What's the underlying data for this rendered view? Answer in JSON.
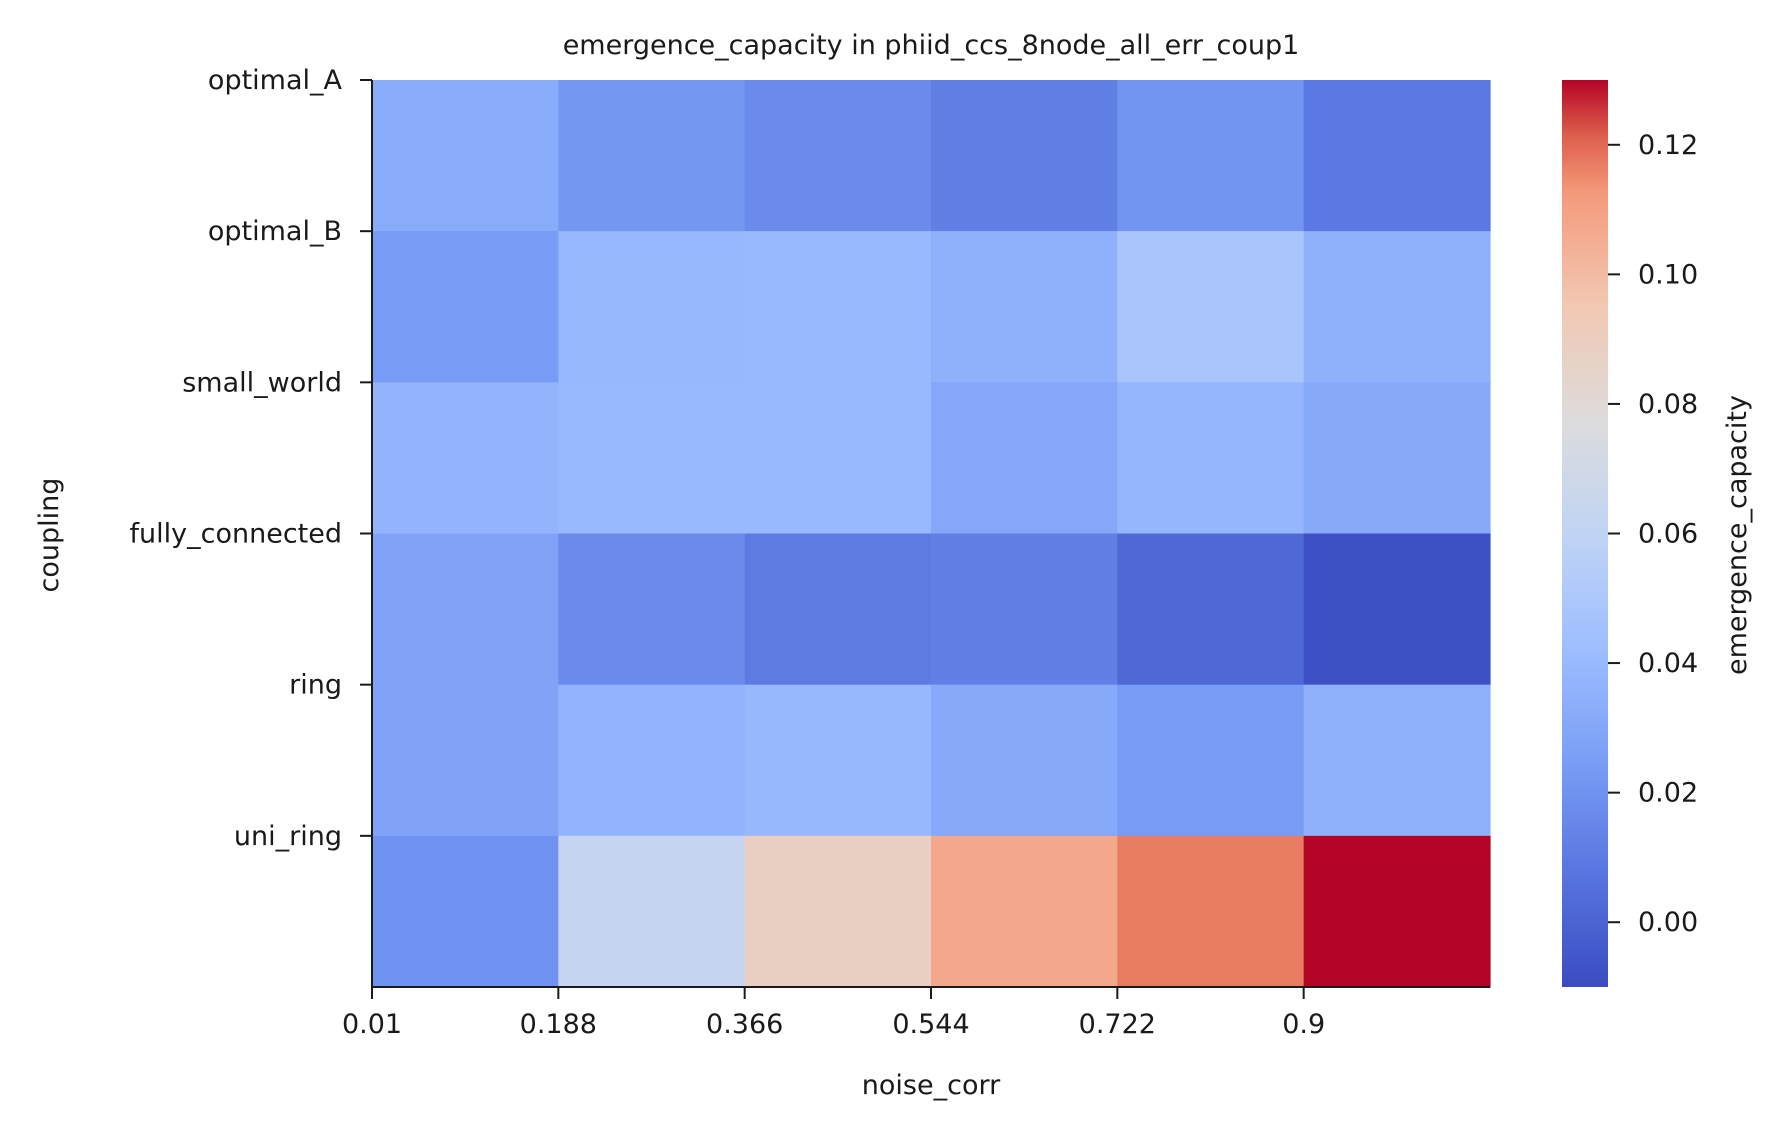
{
  "chart_data": {
    "type": "heatmap",
    "title": "emergence_capacity in phiid_ccs_8node_all_err_coup1",
    "xlabel": "noise_corr",
    "ylabel": "coupling",
    "colorbar_label": "emergence_capacity",
    "colormap": "coolwarm",
    "x_tick_labels": [
      "0.01",
      "0.188",
      "0.366",
      "0.544",
      "0.722",
      "0.9"
    ],
    "x_columns": [
      "0.01",
      "0.188",
      "0.366",
      "0.544",
      "0.722",
      "0.9"
    ],
    "y_categories": [
      "optimal_A",
      "optimal_B",
      "small_world",
      "fully_connected",
      "ring",
      "uni_ring"
    ],
    "values": [
      [
        0.032,
        0.022,
        0.017,
        0.012,
        0.021,
        0.009
      ],
      [
        0.024,
        0.039,
        0.04,
        0.035,
        0.048,
        0.035
      ],
      [
        0.037,
        0.04,
        0.04,
        0.03,
        0.038,
        0.031
      ],
      [
        0.028,
        0.017,
        0.01,
        0.012,
        0.002,
        -0.008
      ],
      [
        0.028,
        0.037,
        0.039,
        0.031,
        0.024,
        0.035
      ],
      [
        0.02,
        0.063,
        0.088,
        0.107,
        0.117,
        0.13
      ]
    ],
    "vmin": -0.01,
    "vmax": 0.13,
    "colorbar_ticks": [
      0.0,
      0.02,
      0.04,
      0.06,
      0.08,
      0.1,
      0.12
    ],
    "colorbar_tick_labels": [
      "0.00",
      "0.02",
      "0.04",
      "0.06",
      "0.08",
      "0.10",
      "0.12"
    ]
  }
}
